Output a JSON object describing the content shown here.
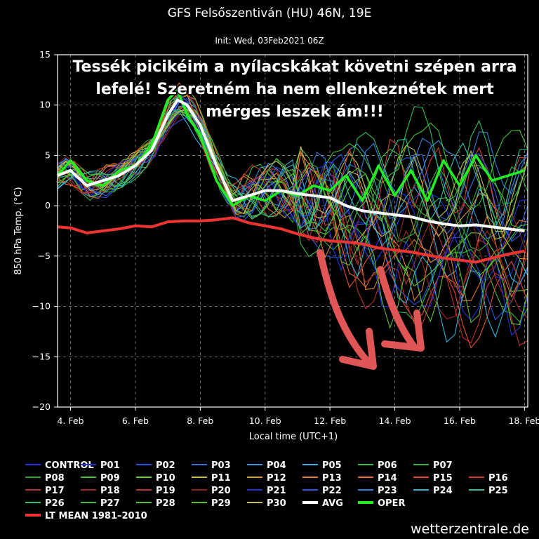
{
  "chart_data": {
    "type": "line",
    "title": "GFS Felsőszentiván (HU) 46N, 19E",
    "subtitle": "Init: Wed, 03Feb2021 06Z",
    "xlabel": "Local time (UTC+1)",
    "ylabel": "850 hPa Temp. (°C)",
    "xlim": [
      3.6,
      18.1
    ],
    "ylim": [
      -20,
      15
    ],
    "yticks": [
      15,
      10,
      5,
      0,
      -5,
      -10,
      -15,
      -20
    ],
    "yticklabels": [
      "15",
      "10",
      "5",
      "0",
      "−5",
      "−10",
      "−15",
      "−20"
    ],
    "xticks": [
      4,
      6,
      8,
      10,
      12,
      14,
      16,
      18
    ],
    "xticklabels": [
      "4. Feb",
      "6. Feb",
      "8. Feb",
      "10. Feb",
      "12. Feb",
      "14. Feb",
      "16. Feb",
      "18. Feb"
    ],
    "grid": true,
    "series": [
      {
        "name": "AVG",
        "color": "#ffffff",
        "x": [
          3.6,
          4.0,
          4.5,
          5.0,
          5.5,
          6.0,
          6.5,
          7.0,
          7.3,
          7.6,
          8.0,
          8.5,
          9.0,
          9.5,
          10.0,
          10.5,
          11.0,
          11.5,
          12.0,
          12.5,
          13.0,
          13.5,
          14.0,
          14.5,
          15.0,
          15.5,
          16.0,
          16.5,
          17.0,
          17.5,
          18.0
        ],
        "values": [
          3.0,
          3.5,
          2.0,
          2.5,
          3.0,
          4.0,
          5.5,
          9.0,
          10.5,
          10.0,
          8.0,
          4.0,
          0.5,
          1.0,
          1.5,
          1.5,
          1.2,
          1.0,
          0.8,
          0.0,
          -0.5,
          -0.7,
          -0.9,
          -1.1,
          -1.5,
          -1.8,
          -2.0,
          -1.9,
          -2.1,
          -2.3,
          -2.5
        ]
      },
      {
        "name": "OPER",
        "color": "#22ee22",
        "x": [
          3.6,
          4.0,
          4.5,
          5.0,
          5.5,
          6.0,
          6.5,
          7.0,
          7.3,
          7.6,
          8.0,
          8.5,
          9.0,
          9.5,
          10.0,
          10.5,
          11.0,
          11.5,
          12.0,
          12.5,
          13.0,
          13.5,
          14.0,
          14.5,
          15.0,
          15.5,
          16.0,
          16.5,
          17.0,
          17.5,
          18.0
        ],
        "values": [
          3.0,
          4.5,
          2.5,
          2.0,
          3.5,
          4.0,
          6.0,
          10.5,
          11.5,
          9.0,
          7.0,
          2.5,
          0.0,
          1.0,
          0.5,
          1.5,
          1.0,
          2.0,
          1.5,
          3.0,
          0.5,
          4.0,
          1.0,
          3.5,
          0.5,
          4.5,
          2.0,
          5.0,
          2.5,
          3.0,
          3.5
        ]
      },
      {
        "name": "LT MEAN 1981-2010",
        "color": "#ee3333",
        "x": [
          3.6,
          4.0,
          4.5,
          5.0,
          5.5,
          6.0,
          6.5,
          7.0,
          7.5,
          8.0,
          8.5,
          9.0,
          9.5,
          10.0,
          10.5,
          11.0,
          11.5,
          12.0,
          12.5,
          13.0,
          13.5,
          14.0,
          14.5,
          15.0,
          15.5,
          16.0,
          16.5,
          17.0,
          17.5,
          18.0
        ],
        "values": [
          -2.1,
          -2.2,
          -2.7,
          -2.5,
          -2.3,
          -2.0,
          -2.1,
          -1.6,
          -1.5,
          -1.5,
          -1.4,
          -1.2,
          -1.7,
          -2.0,
          -2.3,
          -2.8,
          -3.2,
          -3.5,
          -3.6,
          -3.8,
          -4.2,
          -4.4,
          -4.6,
          -4.9,
          -5.2,
          -5.4,
          -5.6,
          -5.2,
          -4.8,
          -4.5
        ]
      }
    ],
    "ensemble_members": [
      "CONTROL",
      "P01",
      "P02",
      "P03",
      "P04",
      "P05",
      "P06",
      "P07",
      "P08",
      "P09",
      "P10",
      "P11",
      "P12",
      "P13",
      "P14",
      "P15",
      "P16",
      "P17",
      "P18",
      "P19",
      "P20",
      "P21",
      "P22",
      "P23",
      "P24",
      "P25",
      "P26",
      "P27",
      "P28",
      "P29",
      "P30"
    ],
    "ensemble_colors": [
      "#2233dd",
      "#2233dd",
      "#2a55dd",
      "#3070dd",
      "#3590dd",
      "#3aaee0",
      "#30c040",
      "#30b040",
      "#30a030",
      "#45c030",
      "#60d030",
      "#c0c030",
      "#e0a030",
      "#e08030",
      "#e07030",
      "#e05030",
      "#d04030",
      "#b03030",
      "#a02828",
      "#c03030",
      "#902020",
      "#2233cc",
      "#3355dd",
      "#3080dd",
      "#30b0d0",
      "#30c0a0",
      "#30c060",
      "#40c040",
      "#50c030",
      "#60c030",
      "#c0c060"
    ]
  },
  "legend": {
    "items": [
      {
        "label": "CONTROL",
        "color": "#2233dd"
      },
      {
        "label": "P01",
        "color": "#2233dd"
      },
      {
        "label": "P02",
        "color": "#2a55dd"
      },
      {
        "label": "P03",
        "color": "#3070dd"
      },
      {
        "label": "P04",
        "color": "#3590dd"
      },
      {
        "label": "P05",
        "color": "#3aaee0"
      },
      {
        "label": "P06",
        "color": "#30c040"
      },
      {
        "label": "P07",
        "color": "#30b040"
      },
      {
        "label": "P08",
        "color": "#30a030"
      },
      {
        "label": "P09",
        "color": "#45c030"
      },
      {
        "label": "P10",
        "color": "#60d030"
      },
      {
        "label": "P11",
        "color": "#c0c030"
      },
      {
        "label": "P12",
        "color": "#e0a030"
      },
      {
        "label": "P13",
        "color": "#e08030"
      },
      {
        "label": "P14",
        "color": "#e07030"
      },
      {
        "label": "P15",
        "color": "#e05030"
      },
      {
        "label": "P16",
        "color": "#d04030"
      },
      {
        "label": "P17",
        "color": "#b03030"
      },
      {
        "label": "P18",
        "color": "#a02828"
      },
      {
        "label": "P19",
        "color": "#c03030"
      },
      {
        "label": "P20",
        "color": "#902020"
      },
      {
        "label": "P21",
        "color": "#2233cc"
      },
      {
        "label": "P22",
        "color": "#3355dd"
      },
      {
        "label": "P23",
        "color": "#3080dd"
      },
      {
        "label": "P24",
        "color": "#30b0d0"
      },
      {
        "label": "P25",
        "color": "#30c0a0"
      },
      {
        "label": "P26",
        "color": "#30c060"
      },
      {
        "label": "P27",
        "color": "#40c040"
      },
      {
        "label": "P28",
        "color": "#50c030"
      },
      {
        "label": "P29",
        "color": "#60c030"
      },
      {
        "label": "P30",
        "color": "#c0c060"
      },
      {
        "label": "AVG",
        "color": "#ffffff"
      },
      {
        "label": "OPER",
        "color": "#22ee22"
      },
      {
        "label": "LT MEAN 1981–2010",
        "color": "#ee3333"
      }
    ]
  },
  "annotation": {
    "lines": [
      "Tessék picikéim a nyílacskákat követni szépen arra",
      "lefelé! Szeretném ha nem ellenkeznétek mert",
      "mérges leszek ám!!!"
    ],
    "arrow_color": "#e05555"
  },
  "credit": "wetterzentrale.de"
}
